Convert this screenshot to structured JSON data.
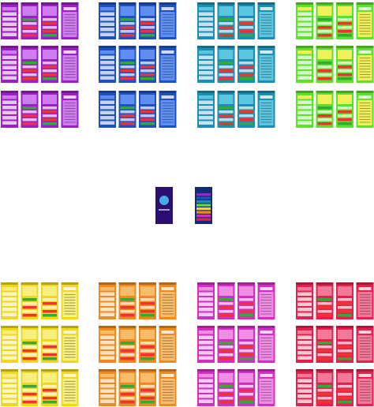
{
  "themes": [
    {
      "color": "#9a1fc4",
      "accent": "#cf7cf0"
    },
    {
      "color": "#1f4fc2",
      "accent": "#5f8ff0"
    },
    {
      "color": "#1a8fb3",
      "accent": "#5cc6e0"
    },
    {
      "color": "#5ee02c",
      "accent": "#f2f05a"
    },
    {
      "color": "#f0d81c",
      "accent": "#f8ee80"
    },
    {
      "color": "#f08a1e",
      "accent": "#f8bc6a"
    },
    {
      "color": "#d22fc2",
      "accent": "#f08ee6"
    },
    {
      "color": "#e3204e",
      "accent": "#f27a98"
    }
  ],
  "center": {
    "splash": "#2a0f70",
    "menu": "#132a78"
  }
}
